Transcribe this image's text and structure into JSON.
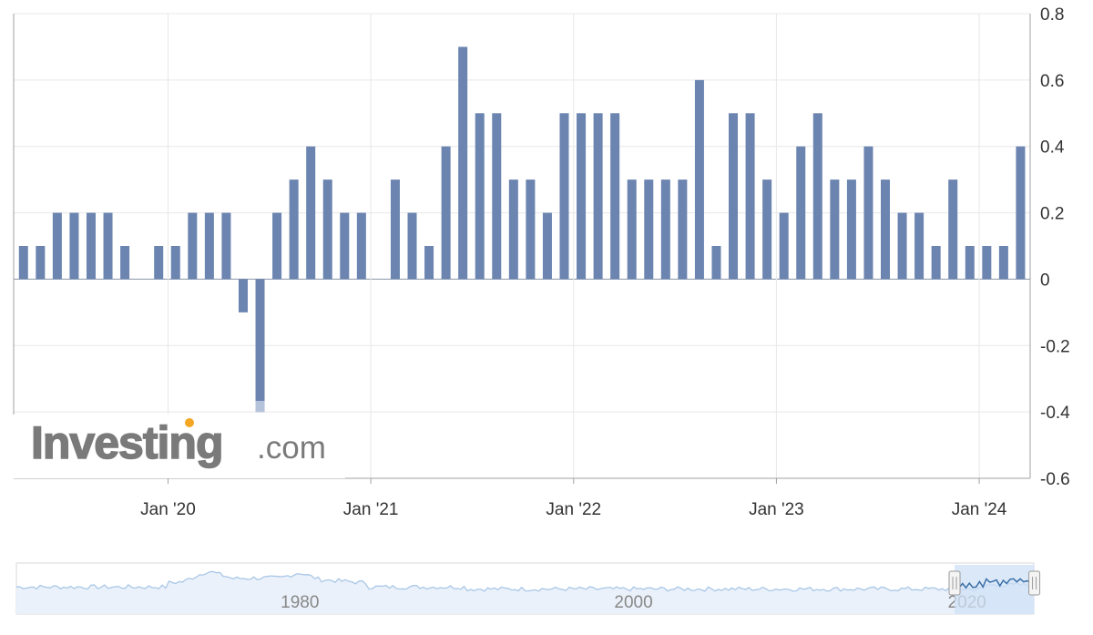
{
  "brand": {
    "name": "Investing",
    "suffix": ".com",
    "color": "#7a7a7a",
    "dot_color": "#f5a623"
  },
  "colors": {
    "bar": "#6b84b0",
    "bar_faded": "#b5c3da",
    "grid": "#e8e8e8",
    "axis": "#a0a0a0",
    "text": "#333333",
    "navigator_line": "#a9c7e6",
    "navigator_line_selected": "#3b6fa8",
    "navigator_fill": "#eaf1fa",
    "navigator_selection": "#cfe0f5"
  },
  "chart_data": {
    "type": "bar",
    "title": "",
    "xlabel": "",
    "ylabel": "",
    "ylim": [
      -0.6,
      0.8
    ],
    "yticks": [
      "0.8",
      "0.6",
      "0.4",
      "0.2",
      "0",
      "-0.2",
      "-0.4",
      "-0.6"
    ],
    "ytick_values": [
      0.8,
      0.6,
      0.4,
      0.2,
      0,
      -0.2,
      -0.4,
      -0.6
    ],
    "grid": true,
    "x_tick_labels": [
      "Jan '20",
      "Jan '21",
      "Jan '22",
      "Jan '23",
      "Jan '24"
    ],
    "x_tick_months": [
      "2020-01",
      "2021-01",
      "2022-01",
      "2023-01",
      "2024-01"
    ],
    "categories": [
      "2019-04",
      "2019-05",
      "2019-06",
      "2019-07",
      "2019-08",
      "2019-09",
      "2019-10",
      "2019-11",
      "2019-12",
      "2020-01",
      "2020-02",
      "2020-03",
      "2020-04",
      "2020-05",
      "2020-06",
      "2020-07",
      "2020-08",
      "2020-09",
      "2020-10",
      "2020-11",
      "2020-12",
      "2021-01",
      "2021-02",
      "2021-03",
      "2021-04",
      "2021-05",
      "2021-06",
      "2021-07",
      "2021-08",
      "2021-09",
      "2021-10",
      "2021-11",
      "2021-12",
      "2022-01",
      "2022-02",
      "2022-03",
      "2022-04",
      "2022-05",
      "2022-06",
      "2022-07",
      "2022-08",
      "2022-09",
      "2022-10",
      "2022-11",
      "2022-12",
      "2023-01",
      "2023-02",
      "2023-03",
      "2023-04",
      "2023-05",
      "2023-06",
      "2023-07",
      "2023-08",
      "2023-09",
      "2023-10",
      "2023-11",
      "2023-12",
      "2024-01",
      "2024-02",
      "2024-03"
    ],
    "values": [
      0.1,
      0.1,
      0.2,
      0.2,
      0.2,
      0.2,
      0.1,
      0,
      0.1,
      0.1,
      0.2,
      0.2,
      0.2,
      -0.1,
      -0.4,
      0.2,
      0.3,
      0.4,
      0.3,
      0.2,
      0.2,
      0,
      0.3,
      0.2,
      0.1,
      0.4,
      0.7,
      0.5,
      0.5,
      0.3,
      0.3,
      0.2,
      0.5,
      0.5,
      0.5,
      0.5,
      0.3,
      0.3,
      0.3,
      0.3,
      0.6,
      0.1,
      0.5,
      0.5,
      0.3,
      0.2,
      0.4,
      0.5,
      0.3,
      0.3,
      0.4,
      0.3,
      0.2,
      0.2,
      0.1,
      0.3,
      0.1,
      0.1,
      0.1,
      0.4
    ],
    "navigator": {
      "year_labels": [
        "1980",
        "2000",
        "2020"
      ],
      "year_values": [
        1980,
        2000,
        2020
      ],
      "range": [
        1963,
        2024
      ],
      "selected_range": [
        2019.25,
        2024.25
      ]
    }
  }
}
